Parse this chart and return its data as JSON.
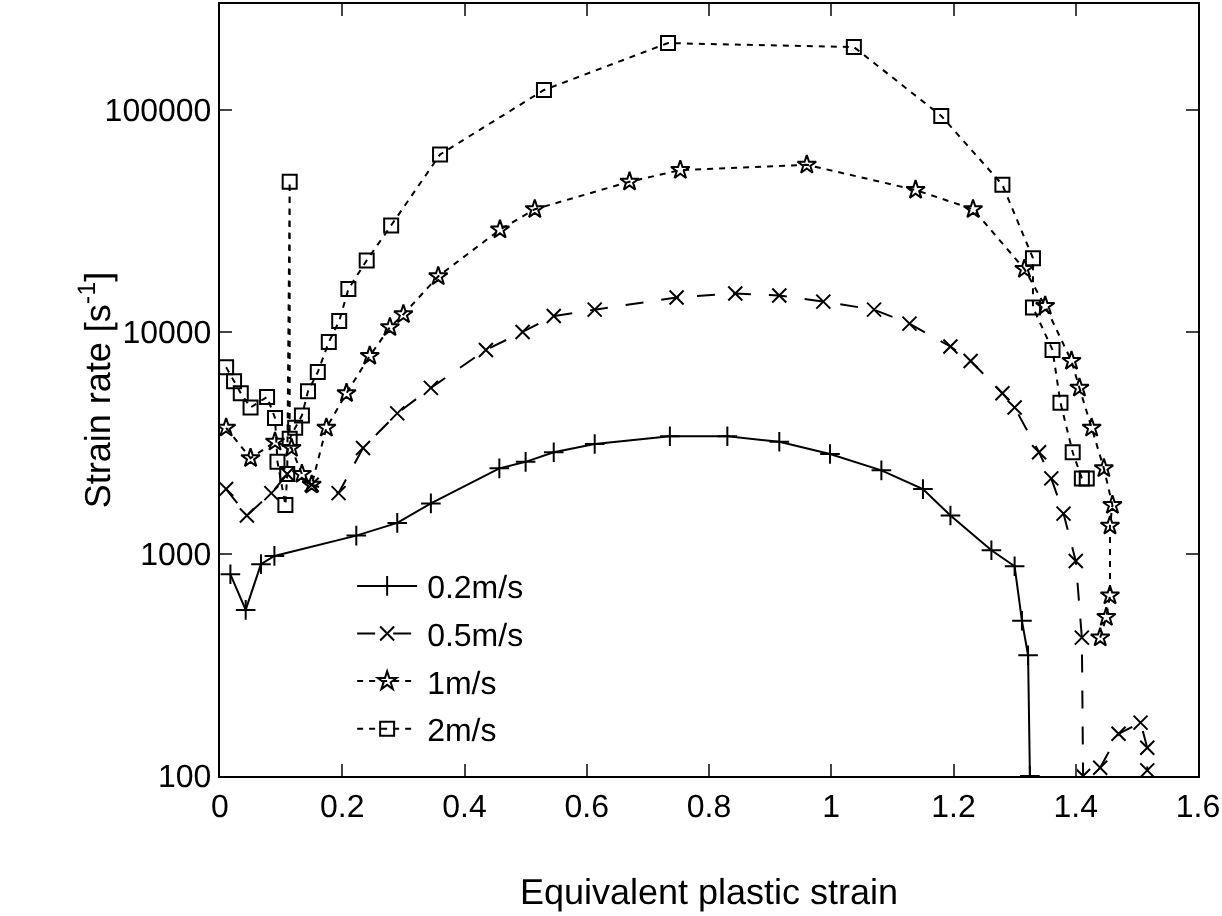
{
  "chart_data": {
    "type": "line",
    "xlabel": "Equivalent plastic strain",
    "ylabel": "Strain rate [s$^{-1}$]",
    "log": "y",
    "grid": false,
    "legend": "bottom left",
    "xlim": [
      0,
      1.6
    ],
    "xticks": [
      0,
      0.2,
      0.4,
      0.6,
      0.8,
      1,
      1.2,
      1.4,
      1.6
    ],
    "ylim": [
      100,
      300000
    ],
    "yticks": [
      100,
      1000,
      10000,
      100000
    ],
    "series": [
      {
        "name": "0.2m/s",
        "color": "#000000",
        "marker": "cross",
        "line_style": "solid",
        "x": [
          0.017,
          0.042,
          0.067,
          0.089,
          0.223,
          0.29,
          0.345,
          0.457,
          0.5,
          0.546,
          0.613,
          0.736,
          0.83,
          0.915,
          0.998,
          1.082,
          1.15,
          1.195,
          1.262,
          1.3,
          1.312,
          1.322,
          1.325
        ],
        "values": [
          810,
          560,
          900,
          980,
          1210,
          1380,
          1690,
          2430,
          2600,
          2870,
          3130,
          3390,
          3390,
          3200,
          2820,
          2380,
          1960,
          1490,
          1040,
          880,
          500,
          350,
          100
        ]
      },
      {
        "name": "0.5m/s",
        "color": "#000000",
        "marker": "cross",
        "line_style": "dashed",
        "x": [
          0.01,
          0.044,
          0.084,
          0.11,
          0.15,
          0.194,
          0.234,
          0.29,
          0.345,
          0.435,
          0.495,
          0.546,
          0.613,
          0.747,
          0.843,
          0.915,
          0.987,
          1.07,
          1.128,
          1.195,
          1.228,
          1.28,
          1.3,
          1.34,
          1.36,
          1.38,
          1.4,
          1.41,
          1.412,
          null,
          1.44,
          1.47,
          1.506,
          1.517,
          1.517
        ],
        "values": [
          1960,
          1490,
          1880,
          2290,
          2050,
          1880,
          3000,
          4300,
          5600,
          8300,
          10000,
          11800,
          12600,
          14300,
          14900,
          14600,
          13700,
          12600,
          10900,
          8600,
          7400,
          5300,
          4570,
          2870,
          2190,
          1520,
          930,
          420,
          100,
          null,
          109,
          155,
          174,
          134,
          106
        ]
      },
      {
        "name": "1m/s",
        "color": "#000000",
        "marker": "star",
        "line_style": "dotted",
        "x": [
          0.01,
          0.05,
          0.09,
          0.117,
          0.134,
          0.15,
          0.174,
          0.207,
          0.245,
          0.278,
          0.3,
          0.357,
          0.458,
          0.515,
          0.67,
          0.753,
          0.96,
          1.138,
          1.232,
          1.316,
          1.35,
          1.393,
          1.406,
          1.426,
          1.446,
          1.46,
          1.456,
          1.456,
          1.45,
          1.44
        ],
        "values": [
          3700,
          2700,
          3200,
          3000,
          2290,
          2050,
          3700,
          5300,
          7800,
          10500,
          12000,
          17800,
          28900,
          35700,
          47500,
          53600,
          56600,
          43600,
          35700,
          19200,
          13100,
          7400,
          5600,
          3700,
          2430,
          1660,
          1340,
          650,
          520,
          420
        ]
      },
      {
        "name": "2m/s",
        "color": "#000000",
        "marker": "square",
        "line_style": "dotted",
        "x": [
          0.01,
          0.023,
          0.034,
          0.05,
          0.077,
          0.09,
          0.094,
          0.107,
          0.11,
          0.114,
          0.114,
          0.123,
          0.134,
          0.144,
          0.16,
          0.178,
          0.195,
          0.21,
          0.24,
          0.28,
          0.36,
          0.53,
          0.733,
          1.037,
          1.18,
          1.28,
          1.33,
          1.33,
          1.362,
          1.375,
          1.395,
          1.41,
          1.418
        ],
        "values": [
          6940,
          6000,
          5300,
          4570,
          5100,
          4100,
          2600,
          1660,
          2290,
          47500,
          3300,
          3700,
          4200,
          5400,
          6600,
          9000,
          11200,
          15600,
          21000,
          30200,
          63000,
          123000,
          200000,
          192000,
          94000,
          46000,
          21500,
          12900,
          8300,
          4800,
          2870,
          2190,
          2190
        ]
      }
    ]
  }
}
